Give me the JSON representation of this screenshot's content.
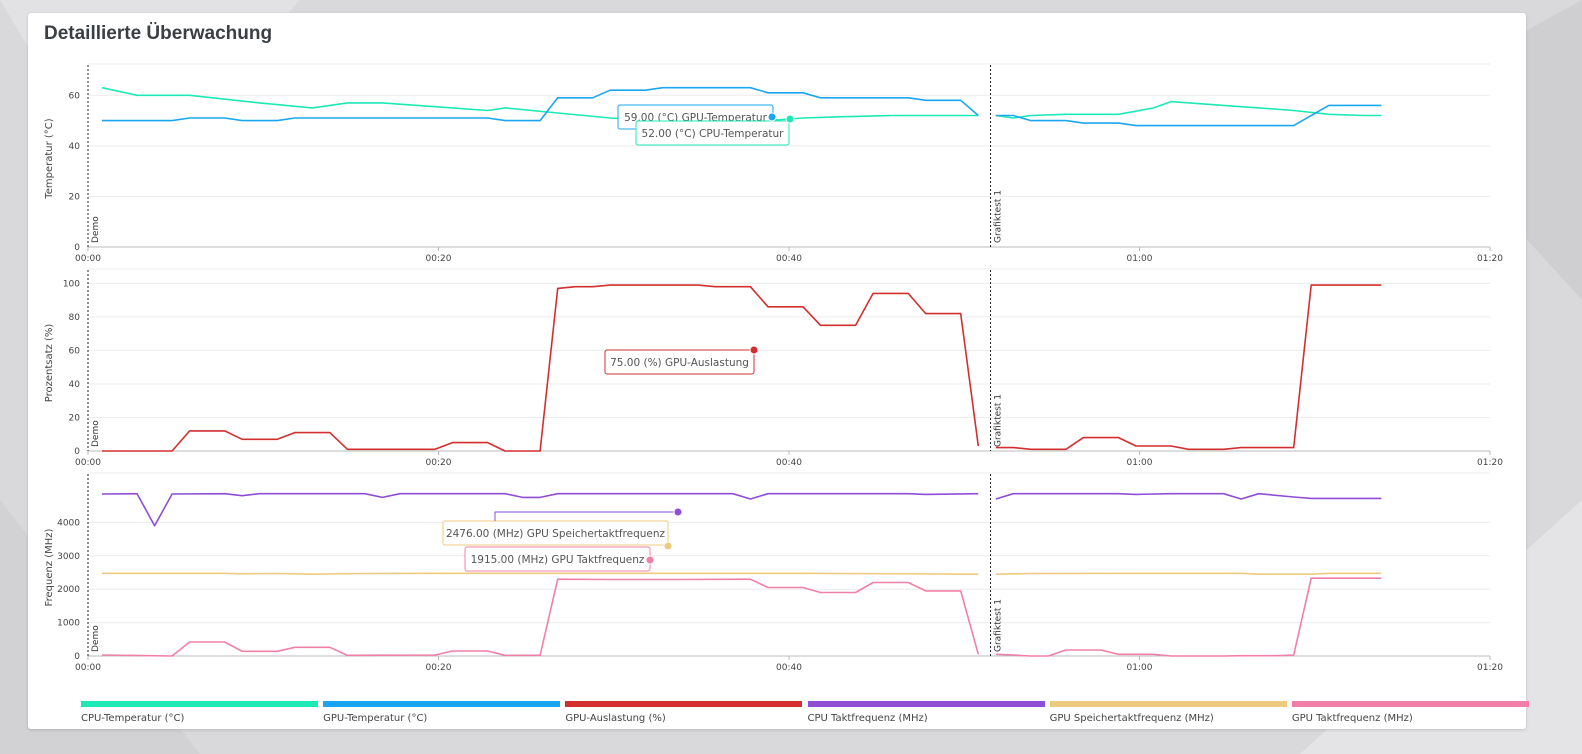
{
  "panel": {
    "title": "Detaillierte Überwachung"
  },
  "colors": {
    "cpu_temp": "#1de9b6",
    "gpu_temp": "#1ba7f0",
    "gpu_load": "#d32f2f",
    "cpu_clock": "#8e4ed6",
    "gpu_mem_clock": "#eccb7f",
    "gpu_clock": "#f080a8",
    "grid": "#ececec",
    "axis_text": "#444444"
  },
  "x_axis": {
    "ticks": [
      "00:00",
      "00:20",
      "00:40",
      "01:00",
      "01:20"
    ],
    "tick_values_sec": [
      0,
      1200,
      2400,
      3600,
      4800
    ]
  },
  "markers": [
    {
      "label": "Demo",
      "time_sec": 0
    },
    {
      "label": "Grafiktest 1",
      "time_sec": 3090
    }
  ],
  "legend": [
    {
      "label": "CPU-Temperatur (°C)",
      "color_key": "cpu_temp"
    },
    {
      "label": "GPU-Temperatur (°C)",
      "color_key": "gpu_temp"
    },
    {
      "label": "GPU-Auslastung (%)",
      "color_key": "gpu_load"
    },
    {
      "label": "CPU Taktfrequenz (MHz)",
      "color_key": "cpu_clock"
    },
    {
      "label": "GPU Speichertaktfrequenz (MHz)",
      "color_key": "gpu_mem_clock"
    },
    {
      "label": "GPU Taktfrequenz (MHz)",
      "color_key": "gpu_clock"
    }
  ],
  "chart_data": [
    {
      "type": "line",
      "ylabel": "Temperatur (°C)",
      "ylim": [
        0,
        70
      ],
      "yticks": [
        0,
        20,
        40,
        60
      ],
      "grid": true,
      "series": [
        {
          "name": "CPU-Temperatur (°C)",
          "color_key": "cpu_temp",
          "points": [
            [
              48,
              63
            ],
            [
              168,
              60
            ],
            [
              348,
              60
            ],
            [
              588,
              57
            ],
            [
              768,
              55
            ],
            [
              888,
              57
            ],
            [
              1008,
              57
            ],
            [
              1128,
              56
            ],
            [
              1248,
              55
            ],
            [
              1368,
              54
            ],
            [
              1428,
              55
            ],
            [
              1608,
              53
            ],
            [
              1788,
              51
            ],
            [
              1968,
              50
            ],
            [
              2148,
              51
            ],
            [
              2328,
              50
            ],
            [
              2448,
              51
            ],
            [
              2568,
              51.5
            ],
            [
              2748,
              52
            ],
            [
              3048,
              52
            ],
            [
              3048,
              null
            ],
            [
              3108,
              52
            ],
            [
              3168,
              51
            ],
            [
              3228,
              52
            ],
            [
              3348,
              52.5
            ],
            [
              3528,
              52.5
            ],
            [
              3648,
              55
            ],
            [
              3708,
              57.5
            ],
            [
              3888,
              56
            ],
            [
              4008,
              55
            ],
            [
              4128,
              54
            ],
            [
              4248,
              52.5
            ],
            [
              4368,
              52
            ],
            [
              4428,
              52
            ]
          ]
        },
        {
          "name": "GPU-Temperatur (°C)",
          "color_key": "gpu_temp",
          "points": [
            [
              48,
              50
            ],
            [
              288,
              50
            ],
            [
              348,
              51
            ],
            [
              468,
              51
            ],
            [
              528,
              50
            ],
            [
              648,
              50
            ],
            [
              708,
              51
            ],
            [
              1368,
              51
            ],
            [
              1428,
              50
            ],
            [
              1548,
              50
            ],
            [
              1608,
              59
            ],
            [
              1728,
              59
            ],
            [
              1788,
              62
            ],
            [
              1908,
              62
            ],
            [
              1968,
              63
            ],
            [
              2268,
              63
            ],
            [
              2328,
              61
            ],
            [
              2448,
              61
            ],
            [
              2508,
              59
            ],
            [
              2808,
              59
            ],
            [
              2868,
              58
            ],
            [
              2988,
              58
            ],
            [
              3048,
              52
            ],
            [
              3048,
              null
            ],
            [
              3108,
              52
            ],
            [
              3168,
              52
            ],
            [
              3228,
              50
            ],
            [
              3348,
              50
            ],
            [
              3408,
              49
            ],
            [
              3528,
              49
            ],
            [
              3588,
              48
            ],
            [
              4068,
              48
            ],
            [
              4128,
              48
            ],
            [
              4248,
              56
            ],
            [
              4428,
              56
            ]
          ]
        }
      ],
      "annotations": [
        {
          "text": "59.00 (°C) GPU-Temperatur",
          "color_key": "gpu_temp"
        },
        {
          "text": "52.00 (°C) CPU-Temperatur",
          "color_key": "cpu_temp"
        }
      ]
    },
    {
      "type": "line",
      "ylabel": "Prozentsatz (%)",
      "ylim": [
        0,
        105
      ],
      "yticks": [
        0,
        20,
        40,
        60,
        80,
        100
      ],
      "grid": true,
      "series": [
        {
          "name": "GPU-Auslastung (%)",
          "color_key": "gpu_load",
          "points": [
            [
              48,
              0
            ],
            [
              288,
              0
            ],
            [
              348,
              12
            ],
            [
              468,
              12
            ],
            [
              528,
              7
            ],
            [
              648,
              7
            ],
            [
              708,
              11
            ],
            [
              828,
              11
            ],
            [
              888,
              1
            ],
            [
              1188,
              1
            ],
            [
              1248,
              5
            ],
            [
              1368,
              5
            ],
            [
              1428,
              0
            ],
            [
              1548,
              0
            ],
            [
              1608,
              97
            ],
            [
              1668,
              98
            ],
            [
              1728,
              98
            ],
            [
              1788,
              99
            ],
            [
              2088,
              99
            ],
            [
              2148,
              98
            ],
            [
              2268,
              98
            ],
            [
              2328,
              86
            ],
            [
              2448,
              86
            ],
            [
              2508,
              75
            ],
            [
              2628,
              75
            ],
            [
              2688,
              94
            ],
            [
              2808,
              94
            ],
            [
              2868,
              82
            ],
            [
              2988,
              82
            ],
            [
              3048,
              3
            ],
            [
              3048,
              null
            ],
            [
              3108,
              2
            ],
            [
              3168,
              2
            ],
            [
              3228,
              1
            ],
            [
              3348,
              1
            ],
            [
              3408,
              8
            ],
            [
              3528,
              8
            ],
            [
              3588,
              3
            ],
            [
              3708,
              3
            ],
            [
              3768,
              1
            ],
            [
              3888,
              1
            ],
            [
              3948,
              2
            ],
            [
              4068,
              2
            ],
            [
              4128,
              2
            ],
            [
              4188,
              99
            ],
            [
              4308,
              99
            ],
            [
              4428,
              99
            ]
          ]
        }
      ],
      "annotations": [
        {
          "text": "75.00 (%) GPU-Auslastung",
          "color_key": "gpu_load"
        }
      ]
    },
    {
      "type": "line",
      "ylabel": "Frequenz (MHz)",
      "ylim": [
        0,
        5300
      ],
      "yticks": [
        0,
        1000,
        2000,
        3000,
        4000
      ],
      "grid": true,
      "series": [
        {
          "name": "CPU Taktfrequenz (MHz)",
          "color_key": "cpu_clock",
          "points": [
            [
              48,
              4850
            ],
            [
              168,
              4860
            ],
            [
              228,
              3900
            ],
            [
              288,
              4850
            ],
            [
              468,
              4860
            ],
            [
              528,
              4800
            ],
            [
              588,
              4860
            ],
            [
              948,
              4860
            ],
            [
              1008,
              4750
            ],
            [
              1068,
              4860
            ],
            [
              1428,
              4860
            ],
            [
              1488,
              4750
            ],
            [
              1548,
              4750
            ],
            [
              1608,
              4860
            ],
            [
              2208,
              4860
            ],
            [
              2268,
              4700
            ],
            [
              2328,
              4860
            ],
            [
              2808,
              4860
            ],
            [
              2868,
              4840
            ],
            [
              3048,
              4860
            ],
            [
              3048,
              null
            ],
            [
              3108,
              4700
            ],
            [
              3168,
              4860
            ],
            [
              3528,
              4860
            ],
            [
              3588,
              4840
            ],
            [
              3708,
              4860
            ],
            [
              3888,
              4860
            ],
            [
              3948,
              4700
            ],
            [
              4008,
              4860
            ],
            [
              4128,
              4760
            ],
            [
              4188,
              4720
            ],
            [
              4428,
              4720
            ]
          ]
        },
        {
          "name": "GPU Speichertaktfrequenz (MHz)",
          "color_key": "gpu_mem_clock",
          "points": [
            [
              48,
              2476
            ],
            [
              468,
              2476
            ],
            [
              528,
              2460
            ],
            [
              648,
              2470
            ],
            [
              768,
              2450
            ],
            [
              948,
              2470
            ],
            [
              1248,
              2476
            ],
            [
              2388,
              2476
            ],
            [
              2448,
              2476
            ],
            [
              3048,
              2450
            ],
            [
              3048,
              null
            ],
            [
              3108,
              2450
            ],
            [
              3228,
              2470
            ],
            [
              3708,
              2476
            ],
            [
              3948,
              2476
            ],
            [
              4008,
              2450
            ],
            [
              4188,
              2450
            ],
            [
              4248,
              2476
            ],
            [
              4428,
              2476
            ]
          ]
        },
        {
          "name": "GPU Taktfrequenz (MHz)",
          "color_key": "gpu_clock",
          "points": [
            [
              48,
              30
            ],
            [
              288,
              0
            ],
            [
              348,
              420
            ],
            [
              468,
              420
            ],
            [
              528,
              140
            ],
            [
              648,
              140
            ],
            [
              708,
              260
            ],
            [
              828,
              260
            ],
            [
              888,
              20
            ],
            [
              1188,
              30
            ],
            [
              1248,
              150
            ],
            [
              1368,
              150
            ],
            [
              1428,
              20
            ],
            [
              1548,
              20
            ],
            [
              1608,
              2300
            ],
            [
              1788,
              2290
            ],
            [
              2028,
              2290
            ],
            [
              2268,
              2300
            ],
            [
              2328,
              2050
            ],
            [
              2448,
              2050
            ],
            [
              2508,
              1900
            ],
            [
              2628,
              1900
            ],
            [
              2688,
              2200
            ],
            [
              2808,
              2200
            ],
            [
              2868,
              1950
            ],
            [
              2988,
              1950
            ],
            [
              3048,
              50
            ],
            [
              3048,
              null
            ],
            [
              3108,
              50
            ],
            [
              3168,
              30
            ],
            [
              3228,
              0
            ],
            [
              3288,
              0
            ],
            [
              3348,
              180
            ],
            [
              3468,
              180
            ],
            [
              3528,
              50
            ],
            [
              3648,
              50
            ],
            [
              3708,
              0
            ],
            [
              3888,
              0
            ],
            [
              3948,
              10
            ],
            [
              4068,
              10
            ],
            [
              4128,
              30
            ],
            [
              4188,
              2330
            ],
            [
              4308,
              2330
            ],
            [
              4428,
              2330
            ]
          ]
        }
      ],
      "annotations": [
        {
          "text": "2476.00 (MHz) GPU Speichertaktfrequenz",
          "color_key": "gpu_mem_clock"
        },
        {
          "text": "1915.00 (MHz) GPU Taktfrequenz",
          "color_key": "gpu_clock"
        }
      ]
    }
  ]
}
